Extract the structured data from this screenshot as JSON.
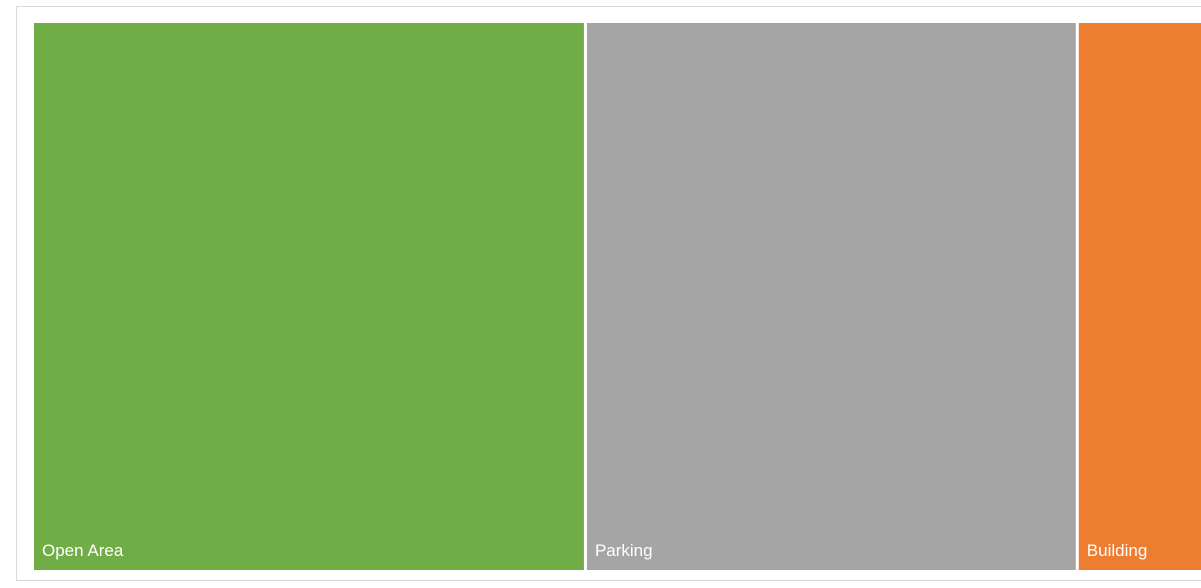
{
  "chart_data": {
    "type": "treemap",
    "title": "",
    "items": [
      {
        "label": "Open Area",
        "value": 54,
        "color": "#70ad47"
      },
      {
        "label": "Parking",
        "value": 48,
        "color": "#a5a5a5"
      },
      {
        "label": "Building",
        "value": 12,
        "color": "#ed7d31"
      }
    ],
    "legend": "none",
    "grid": false
  }
}
